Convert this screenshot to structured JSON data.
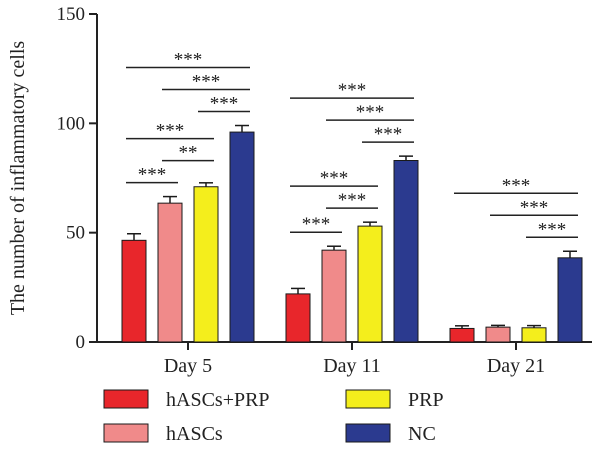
{
  "chart_data": {
    "type": "bar",
    "ylabel": "The number of inflammatory cells",
    "ylim": [
      0,
      150
    ],
    "yticks": [
      0,
      50,
      100,
      150
    ],
    "categories": [
      "Day 5",
      "Day 11",
      "Day 21"
    ],
    "series": [
      {
        "name": "hASCs+PRP",
        "color": "#e8262b",
        "values": [
          46.5,
          22.0,
          6.2
        ],
        "errors": [
          3.0,
          2.5,
          1.2
        ]
      },
      {
        "name": "hASCs",
        "color": "#f08a8a",
        "values": [
          63.5,
          42.0,
          6.8
        ],
        "errors": [
          3.0,
          1.8,
          0.8
        ]
      },
      {
        "name": "PRP",
        "color": "#f4ee1c",
        "values": [
          71.0,
          53.0,
          6.5
        ],
        "errors": [
          1.8,
          1.8,
          1.0
        ]
      },
      {
        "name": "NC",
        "color": "#2b3a8f",
        "values": [
          96.0,
          83.0,
          38.5
        ],
        "errors": [
          3.0,
          2.0,
          3.0
        ]
      }
    ],
    "significance": [
      {
        "group": 0,
        "from": 0,
        "to": 1,
        "label": "***"
      },
      {
        "group": 0,
        "from": 1,
        "to": 2,
        "label": "**"
      },
      {
        "group": 0,
        "from": 0,
        "to": 2,
        "label": "***"
      },
      {
        "group": 0,
        "from": 2,
        "to": 3,
        "label": "***"
      },
      {
        "group": 0,
        "from": 1,
        "to": 3,
        "label": "***"
      },
      {
        "group": 0,
        "from": 0,
        "to": 3,
        "label": "***"
      },
      {
        "group": 1,
        "from": 0,
        "to": 1,
        "label": "***"
      },
      {
        "group": 1,
        "from": 1,
        "to": 2,
        "label": "***"
      },
      {
        "group": 1,
        "from": 0,
        "to": 2,
        "label": "***"
      },
      {
        "group": 1,
        "from": 2,
        "to": 3,
        "label": "***"
      },
      {
        "group": 1,
        "from": 1,
        "to": 3,
        "label": "***"
      },
      {
        "group": 1,
        "from": 0,
        "to": 3,
        "label": "***"
      },
      {
        "group": 2,
        "from": 2,
        "to": 3,
        "label": "***"
      },
      {
        "group": 2,
        "from": 1,
        "to": 3,
        "label": "***"
      },
      {
        "group": 2,
        "from": 0,
        "to": 3,
        "label": "***"
      }
    ],
    "legend": [
      "hASCs+PRP",
      "PRP",
      "hASCs",
      "NC"
    ],
    "legend_position": "bottom",
    "grid": false
  }
}
